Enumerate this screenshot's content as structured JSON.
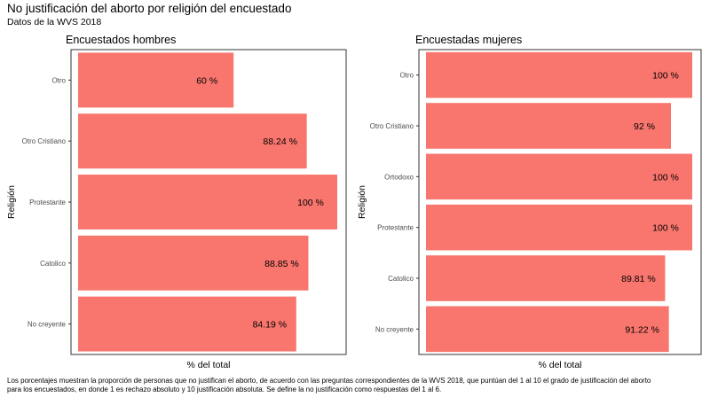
{
  "title": "No justificación del aborto por religión del encuestado",
  "subtitle": "Datos de la WVS 2018",
  "caption_line1": "Los porcentajes muestran la proporción de personas que no justifican el aborto, de acuerdo con las preguntas correspondientes de la WVS 2018, que puntúan del 1 al 10 el grado de justificación del aborto",
  "caption_line2": "para los encuestados, en donde 1 es rechazo absoluto y 10 justificación absoluta. Se define la no justificación como respuestas del 1 al 6.",
  "colors": {
    "bar": "#F8766D",
    "panel_border": "#333333"
  },
  "chart_data": [
    {
      "type": "bar",
      "orientation": "horizontal",
      "title": "Encuestados hombres",
      "xlabel": "% del total",
      "ylabel": "Religión",
      "xlim": [
        0,
        100
      ],
      "grid": false,
      "categories": [
        "Otro",
        "Otro Cristiano",
        "Protestante",
        "Catolico",
        "No creyente"
      ],
      "values": [
        60,
        88.24,
        100,
        88.85,
        84.19
      ],
      "labels": [
        "60 %",
        "88.24 %",
        "100 %",
        "88.85 %",
        "84.19 %"
      ]
    },
    {
      "type": "bar",
      "orientation": "horizontal",
      "title": "Encuestadas mujeres",
      "xlabel": "% del total",
      "ylabel": "Religión",
      "xlim": [
        0,
        100
      ],
      "grid": false,
      "categories": [
        "Otro",
        "Otro Cristiano",
        "Ortodoxo",
        "Protestante",
        "Catolico",
        "No creyente"
      ],
      "values": [
        100,
        92,
        100,
        100,
        89.81,
        91.22
      ],
      "labels": [
        "100 %",
        "92 %",
        "100 %",
        "100 %",
        "89.81 %",
        "91.22 %"
      ]
    }
  ]
}
